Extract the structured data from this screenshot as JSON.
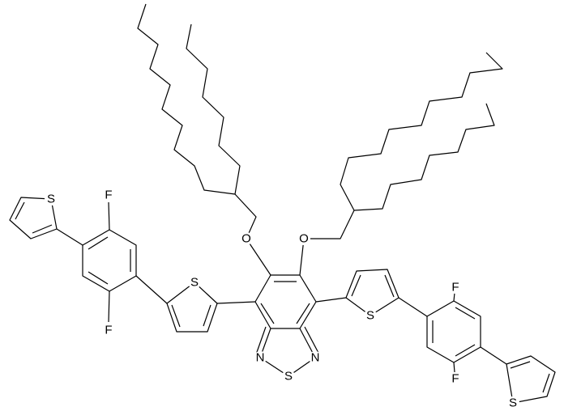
{
  "atoms": [
    "S",
    "F",
    "F",
    "S",
    "O",
    "O",
    "N",
    "S",
    "N",
    "S",
    "F",
    "F",
    "S"
  ]
}
